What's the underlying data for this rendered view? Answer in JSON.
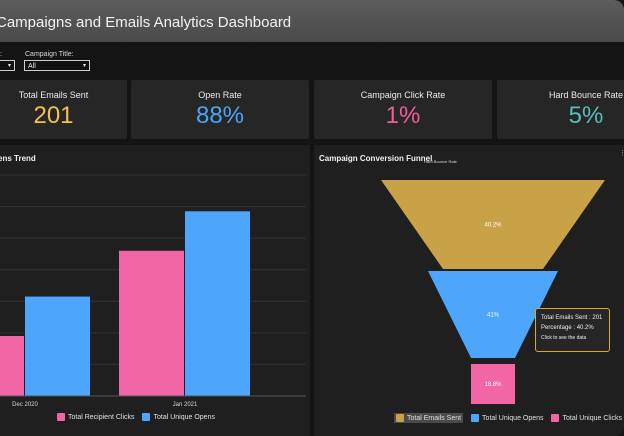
{
  "header": {
    "title": "Campaigns and Emails Analytics Dashboard"
  },
  "filters": {
    "first": {
      "label": ":",
      "value": ""
    },
    "campaign_title": {
      "label": "Campaign Title:",
      "value": "All"
    }
  },
  "kpis": [
    {
      "label": "Total Emails Sent",
      "value": "201",
      "color": "#f2c14e"
    },
    {
      "label": "Open Rate",
      "value": "88%",
      "color": "#4da3f5"
    },
    {
      "label": "Campaign Click Rate",
      "value": "1%",
      "color": "#f05b9a"
    },
    {
      "label": "Hard Bounce Rate",
      "value": "5%",
      "color": "#5bbdb8"
    }
  ],
  "trend_panel": {
    "title": "ens Trend"
  },
  "funnel_panel": {
    "title": "Campaign Conversion Funnel",
    "subtitle": "Hard Bounce Rate"
  },
  "chart_data": [
    {
      "type": "bar",
      "categories": [
        "Dec 2020",
        "Jan 2021"
      ],
      "series": [
        {
          "name": "Total Recipient Clicks",
          "color": "#f266a6",
          "values": [
            38,
            92
          ]
        },
        {
          "name": "Total Unique Opens",
          "color": "#4da6fb",
          "values": [
            63,
            117
          ]
        }
      ],
      "ylim": [
        0,
        140
      ],
      "grid": true,
      "legend": "bottom"
    },
    {
      "type": "funnel",
      "stages": [
        {
          "name": "Total Emails Sent",
          "label": "40.2%",
          "value": 40.2,
          "color": "#c9a248"
        },
        {
          "name": "Total Unique Opens",
          "label": "41%",
          "value": 41,
          "color": "#4da6fb"
        },
        {
          "name": "Total Unique Clicks",
          "label": "18.8%",
          "value": 18.8,
          "color": "#f266a6"
        }
      ],
      "legend": "bottom"
    }
  ],
  "tooltip": {
    "line1": "Total Emails Sent : 201",
    "line2": "Percentage : 40.2%",
    "hint": "Click to see the data"
  }
}
